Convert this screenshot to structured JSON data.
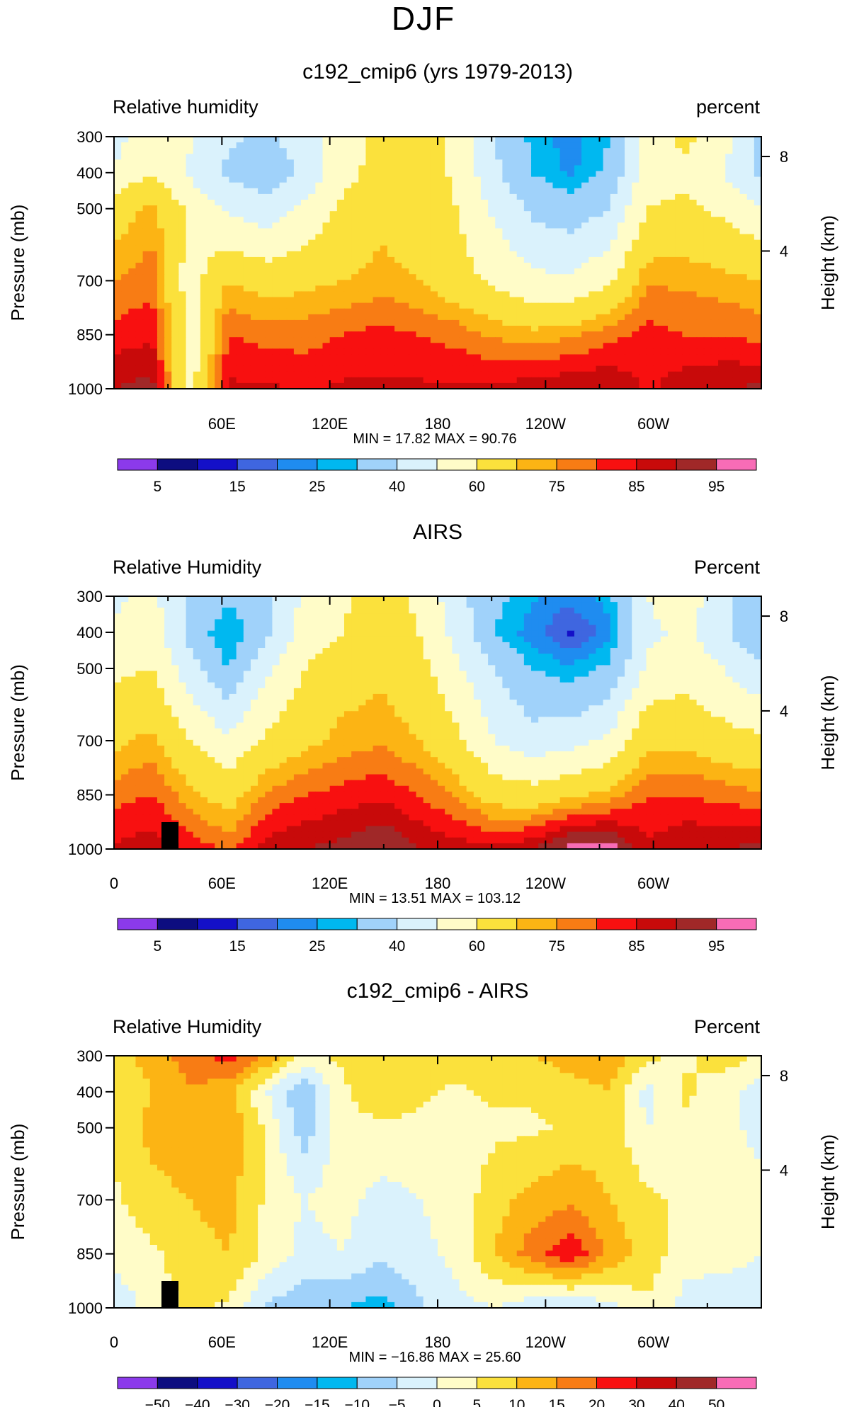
{
  "figure_title": "DJF",
  "chart_data": [
    {
      "type": "heatmap",
      "title": "c192_cmip6 (yrs 1979-2013)",
      "left_label": "Relative humidity",
      "right_label": "percent",
      "ylabel": "Pressure (mb)",
      "ylabel2": "Height (km)",
      "x_ticks": [
        "60E",
        "120E",
        "180",
        "120W",
        "60W"
      ],
      "y_ticks": [
        "300",
        "400",
        "500",
        "700",
        "850",
        "1000"
      ],
      "height_ticks": [
        "8",
        "4"
      ],
      "min_max_text": "MIN =   17.82   MAX =   90.76",
      "colorbar_labels": [
        "5",
        "15",
        "25",
        "40",
        "60",
        "75",
        "85",
        "95"
      ],
      "levels": [
        0,
        5,
        10,
        15,
        20,
        25,
        30,
        40,
        50,
        60,
        70,
        75,
        80,
        85,
        90,
        95,
        100
      ],
      "rows": [
        [
          45,
          60,
          52,
          42,
          38,
          45,
          56,
          62,
          64,
          58,
          40,
          28,
          22,
          30,
          55,
          62,
          55,
          38
        ],
        [
          52,
          60,
          48,
          38,
          34,
          42,
          56,
          64,
          66,
          58,
          42,
          30,
          24,
          32,
          56,
          58,
          50,
          36
        ],
        [
          65,
          72,
          58,
          48,
          44,
          52,
          62,
          68,
          66,
          60,
          48,
          38,
          34,
          40,
          60,
          62,
          58,
          52
        ],
        [
          75,
          78,
          55,
          70,
          66,
          68,
          70,
          72,
          70,
          64,
          58,
          52,
          52,
          58,
          74,
          74,
          72,
          70
        ],
        [
          82,
          84,
          55,
          80,
          78,
          78,
          80,
          82,
          80,
          78,
          74,
          72,
          74,
          78,
          82,
          80,
          80,
          78
        ],
        [
          90,
          92,
          55,
          86,
          86,
          84,
          86,
          86,
          86,
          86,
          86,
          88,
          90,
          90,
          84,
          88,
          90,
          91
        ]
      ]
    },
    {
      "type": "heatmap",
      "title": "AIRS",
      "left_label": "Relative Humidity",
      "right_label": "Percent",
      "ylabel": "Pressure (mb)",
      "ylabel2": "Height (km)",
      "x_ticks": [
        "0",
        "60E",
        "120E",
        "180",
        "120W",
        "60W"
      ],
      "y_ticks": [
        "300",
        "400",
        "500",
        "700",
        "850",
        "1000"
      ],
      "height_ticks": [
        "8",
        "4"
      ],
      "min_max_text": "MIN =   13.51   MAX =  103.12",
      "colorbar_labels": [
        "5",
        "15",
        "25",
        "40",
        "60",
        "75",
        "85",
        "95"
      ],
      "levels": [
        0,
        5,
        10,
        15,
        20,
        25,
        30,
        40,
        50,
        60,
        70,
        75,
        80,
        85,
        90,
        95,
        100
      ],
      "rows": [
        [
          48,
          52,
          40,
          32,
          38,
          52,
          58,
          66,
          58,
          44,
          32,
          26,
          22,
          28,
          50,
          56,
          44,
          30
        ],
        [
          52,
          56,
          36,
          24,
          38,
          54,
          60,
          66,
          60,
          46,
          30,
          22,
          14,
          22,
          48,
          52,
          42,
          30
        ],
        [
          58,
          60,
          44,
          30,
          48,
          60,
          66,
          68,
          64,
          52,
          40,
          30,
          26,
          32,
          52,
          56,
          50,
          42
        ],
        [
          68,
          72,
          60,
          52,
          62,
          68,
          72,
          74,
          70,
          62,
          50,
          44,
          46,
          52,
          68,
          68,
          64,
          62
        ],
        [
          78,
          80,
          72,
          66,
          76,
          80,
          82,
          84,
          80,
          74,
          66,
          64,
          68,
          72,
          80,
          80,
          78,
          76
        ],
        [
          86,
          88,
          84,
          78,
          88,
          90,
          92,
          96,
          90,
          88,
          86,
          90,
          98,
          98,
          86,
          90,
          90,
          92
        ]
      ]
    },
    {
      "type": "heatmap",
      "title": "c192_cmip6 - AIRS",
      "left_label": "Relative Humidity",
      "right_label": "Percent",
      "ylabel": "Pressure (mb)",
      "ylabel2": "Height (km)",
      "x_ticks": [
        "0",
        "60E",
        "120E",
        "180",
        "120W",
        "60W"
      ],
      "y_ticks": [
        "300",
        "400",
        "500",
        "700",
        "850",
        "1000"
      ],
      "height_ticks": [
        "8",
        "4"
      ],
      "min_max_text": "MIN = −16.86   MAX =   25.60",
      "colorbar_labels": [
        "−50",
        "−40",
        "−30",
        "−20",
        "−15",
        "−10",
        "−5",
        "0",
        "5",
        "10",
        "15",
        "20",
        "30",
        "40",
        "50"
      ],
      "levels": [
        -60,
        -50,
        -40,
        -30,
        -20,
        -15,
        -10,
        -5,
        0,
        5,
        10,
        15,
        20,
        30,
        40,
        50,
        60
      ],
      "rows": [
        [
          8,
          12,
          18,
          22,
          14,
          4,
          6,
          8,
          10,
          8,
          6,
          10,
          12,
          14,
          6,
          4,
          8,
          4
        ],
        [
          6,
          10,
          14,
          12,
          0,
          -10,
          4,
          8,
          6,
          4,
          6,
          6,
          8,
          10,
          -2,
          6,
          2,
          -3
        ],
        [
          6,
          12,
          14,
          14,
          4,
          -8,
          4,
          4,
          4,
          2,
          4,
          4,
          6,
          8,
          0,
          4,
          2,
          -2
        ],
        [
          4,
          8,
          10,
          12,
          4,
          0,
          2,
          -2,
          0,
          2,
          8,
          12,
          14,
          10,
          6,
          4,
          2,
          2
        ],
        [
          2,
          4,
          8,
          10,
          4,
          -2,
          0,
          -4,
          -2,
          2,
          10,
          18,
          24,
          14,
          8,
          2,
          2,
          0
        ],
        [
          -4,
          2,
          6,
          4,
          -6,
          -8,
          -10,
          -12,
          -6,
          -2,
          0,
          -4,
          -6,
          -2,
          4,
          -2,
          -4,
          -2
        ]
      ]
    }
  ],
  "colors": {
    "palette": [
      "#8b3aeb",
      "#0d0d80",
      "#1410c8",
      "#3f66e0",
      "#1f8cf0",
      "#00b8f0",
      "#a0d2fa",
      "#daf2fc",
      "#fffcc8",
      "#fbe13c",
      "#fcb414",
      "#f87c14",
      "#f81010",
      "#c80a0a",
      "#a02828",
      "#f86cb6"
    ]
  }
}
